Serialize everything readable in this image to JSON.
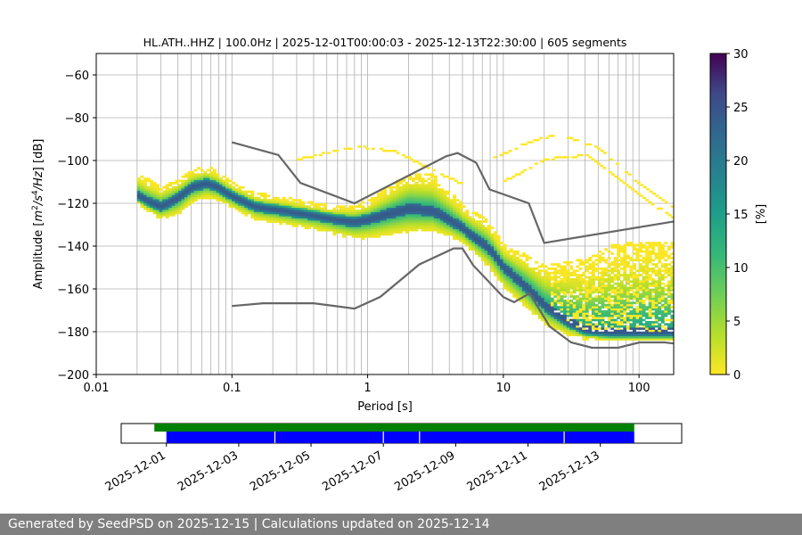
{
  "chart_data": {
    "type": "heatmap",
    "title": "HL.ATH..HHZ | 100.0Hz | 2025-12-01T00:00:03 - 2025-12-13T22:30:00 | 605 segments",
    "xlabel": "Period [s]",
    "ylabel_parts": [
      "Amplitude [",
      "m",
      "2",
      "/",
      "s",
      "4",
      "/",
      "Hz",
      "] [dB]"
    ],
    "x_scale": "log",
    "xlim": [
      0.01,
      180
    ],
    "ylim": [
      -200,
      -50
    ],
    "x_ticks": [
      {
        "value": 0.01,
        "label": "0.01"
      },
      {
        "value": 0.1,
        "label": "0.1"
      },
      {
        "value": 1,
        "label": "1"
      },
      {
        "value": 10,
        "label": "10"
      },
      {
        "value": 100,
        "label": "100"
      }
    ],
    "y_ticks": [
      {
        "value": -60,
        "label": "−60"
      },
      {
        "value": -80,
        "label": "−80"
      },
      {
        "value": -100,
        "label": "−100"
      },
      {
        "value": -120,
        "label": "−120"
      },
      {
        "value": -140,
        "label": "−140"
      },
      {
        "value": -160,
        "label": "−160"
      },
      {
        "value": -180,
        "label": "−180"
      },
      {
        "value": -200,
        "label": "−200"
      }
    ],
    "grid": true,
    "colorbar": {
      "label": "[%]",
      "range": [
        0,
        30
      ],
      "colormap": "viridis_r",
      "ticks": [
        {
          "value": 0,
          "label": "0"
        },
        {
          "value": 5,
          "label": "5"
        },
        {
          "value": 10,
          "label": "10"
        },
        {
          "value": 15,
          "label": "15"
        },
        {
          "value": 20,
          "label": "20"
        },
        {
          "value": 25,
          "label": "25"
        },
        {
          "value": 30,
          "label": "30"
        }
      ]
    },
    "nhnm": {
      "color": "#666666",
      "points": [
        [
          0.1,
          -91.5
        ],
        [
          0.22,
          -97.4
        ],
        [
          0.32,
          -110.5
        ],
        [
          0.8,
          -120
        ],
        [
          3.8,
          -98
        ],
        [
          4.6,
          -96.5
        ],
        [
          6.3,
          -101
        ],
        [
          7.9,
          -113.5
        ],
        [
          15.4,
          -120
        ],
        [
          20,
          -138.5
        ],
        [
          180,
          -128.5
        ]
      ]
    },
    "nlnm": {
      "color": "#666666",
      "points": [
        [
          0.1,
          -168
        ],
        [
          0.17,
          -166.7
        ],
        [
          0.4,
          -166.7
        ],
        [
          0.8,
          -169.2
        ],
        [
          1.24,
          -163.7
        ],
        [
          2.4,
          -148.6
        ],
        [
          4.3,
          -141.1
        ],
        [
          5,
          -141.1
        ],
        [
          6,
          -149
        ],
        [
          10,
          -163.8
        ],
        [
          12,
          -166.2
        ],
        [
          15.6,
          -162.1
        ],
        [
          21.9,
          -177.5
        ],
        [
          31.6,
          -185
        ],
        [
          45,
          -187.5
        ],
        [
          70,
          -187.5
        ],
        [
          101,
          -185
        ],
        [
          154,
          -185
        ],
        [
          180,
          -185.5
        ]
      ]
    },
    "mode": {
      "points": [
        [
          0.02,
          -117
        ],
        [
          0.025,
          -120
        ],
        [
          0.03,
          -122
        ],
        [
          0.04,
          -118
        ],
        [
          0.05,
          -113
        ],
        [
          0.065,
          -111
        ],
        [
          0.08,
          -113
        ],
        [
          0.1,
          -117
        ],
        [
          0.15,
          -122
        ],
        [
          0.25,
          -124
        ],
        [
          0.4,
          -126
        ],
        [
          0.6,
          -128
        ],
        [
          0.8,
          -129
        ],
        [
          1,
          -128
        ],
        [
          1.5,
          -125
        ],
        [
          2,
          -123
        ],
        [
          3,
          -124
        ],
        [
          4,
          -128
        ],
        [
          5,
          -132
        ],
        [
          6,
          -136
        ],
        [
          8,
          -142
        ],
        [
          10,
          -150
        ],
        [
          15,
          -160
        ],
        [
          20,
          -168
        ],
        [
          30,
          -176
        ],
        [
          40,
          -180
        ],
        [
          60,
          -181
        ],
        [
          100,
          -181
        ],
        [
          180,
          -181
        ]
      ],
      "spread_lower": [
        [
          0.02,
          3
        ],
        [
          0.04,
          7
        ],
        [
          0.1,
          5
        ],
        [
          0.5,
          6
        ],
        [
          2,
          10
        ],
        [
          5,
          6
        ],
        [
          10,
          9
        ],
        [
          20,
          8
        ],
        [
          40,
          3
        ],
        [
          180,
          3
        ]
      ],
      "spread_upper": [
        [
          0.02,
          10
        ],
        [
          0.04,
          8
        ],
        [
          0.1,
          6
        ],
        [
          0.5,
          5
        ],
        [
          1,
          8
        ],
        [
          2,
          16
        ],
        [
          3,
          16
        ],
        [
          5,
          10
        ],
        [
          7,
          12
        ],
        [
          10,
          10
        ],
        [
          20,
          18
        ],
        [
          30,
          28
        ],
        [
          60,
          40
        ],
        [
          100,
          42
        ],
        [
          180,
          42
        ]
      ]
    },
    "outlier_arcs": [
      {
        "points": [
          [
            0.3,
            -100
          ],
          [
            0.8,
            -94
          ],
          [
            1.5,
            -96
          ],
          [
            3,
            -105
          ],
          [
            5,
            -112
          ]
        ]
      },
      {
        "points": [
          [
            8,
            -100
          ],
          [
            15,
            -92
          ],
          [
            25,
            -88
          ],
          [
            50,
            -95
          ],
          [
            100,
            -112
          ],
          [
            180,
            -123
          ]
        ]
      },
      {
        "points": [
          [
            10,
            -110
          ],
          [
            20,
            -100
          ],
          [
            40,
            -98
          ],
          [
            90,
            -115
          ],
          [
            180,
            -128
          ]
        ]
      }
    ],
    "timeline": {
      "dates": [
        {
          "value": "2025-12-01",
          "label": "2025-12-01"
        },
        {
          "value": "2025-12-03",
          "label": "2025-12-03"
        },
        {
          "value": "2025-12-05",
          "label": "2025-12-05"
        },
        {
          "value": "2025-12-07",
          "label": "2025-12-07"
        },
        {
          "value": "2025-12-09",
          "label": "2025-12-09"
        },
        {
          "value": "2025-12-11",
          "label": "2025-12-11"
        },
        {
          "value": "2025-12-13",
          "label": "2025-12-13"
        }
      ],
      "start": "2025-11-29T18:00:00",
      "end": "2025-12-15T06:00:00",
      "data_bar": {
        "color": "#008000",
        "from": "2025-11-30T16:00:00",
        "to": "2025-12-13T22:30:00"
      },
      "psd_bar": {
        "color": "#0000ff",
        "from": "2025-12-01T00:00:03",
        "to": "2025-12-13T22:30:00",
        "gaps": [
          "2025-12-04T00:00:00",
          "2025-12-07T00:00:00",
          "2025-12-08T00:00:00",
          "2025-12-12T00:00:00"
        ]
      }
    }
  },
  "footer": {
    "text": "Generated by SeedPSD on 2025-12-15 | Calculations updated on 2025-12-14"
  }
}
